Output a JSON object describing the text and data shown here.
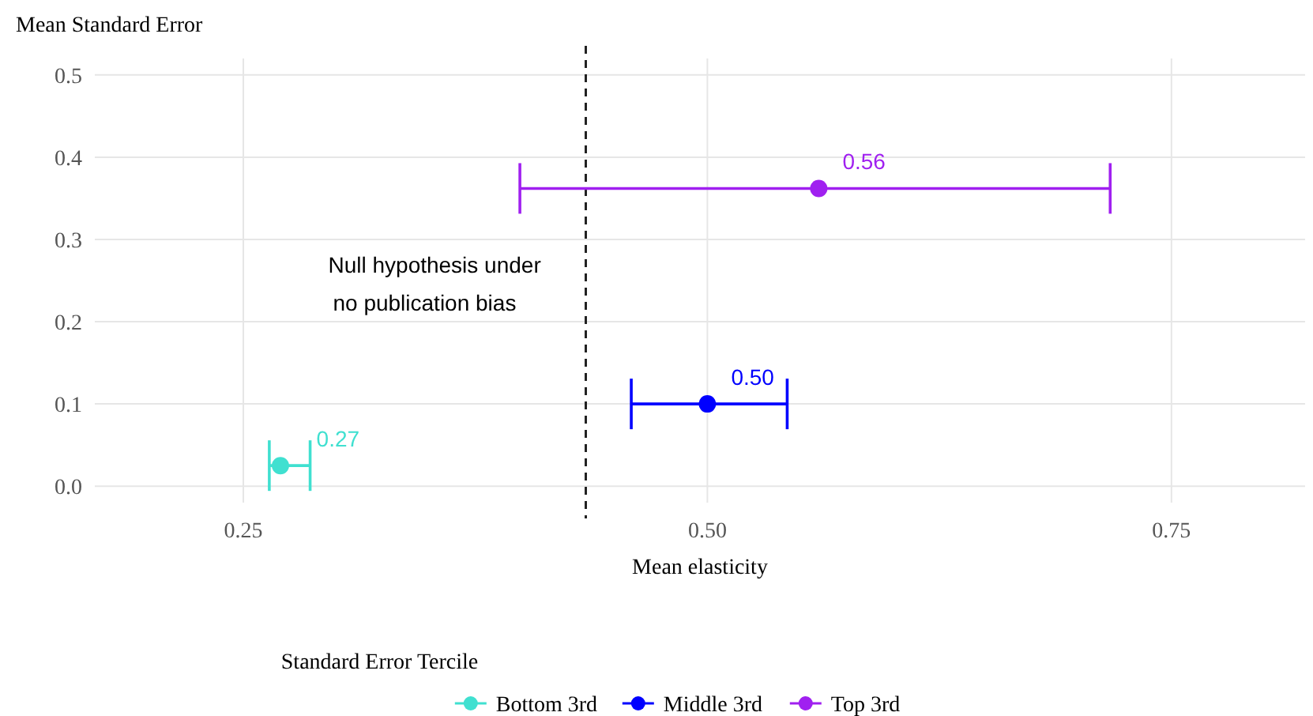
{
  "chart_data": {
    "type": "scatter",
    "ylabel": "Mean Standard Error",
    "xlabel": "Mean elasticity",
    "legend_title": "Standard Error Tercile",
    "legend": "bottom",
    "grid": true,
    "marker": "circle",
    "xlim": [
      0.17,
      0.822
    ],
    "xticks": [
      0.25,
      {
        "value": 0.5,
        "label": "0.50"
      },
      0.75
    ],
    "ylim": [
      -0.02,
      0.52
    ],
    "yticks": [
      {
        "value": 0,
        "label": "0.0"
      },
      0.1,
      0.2,
      0.3,
      0.4,
      0.5
    ],
    "series": [
      {
        "name": "Bottom 3rd",
        "color": "#40e0d0",
        "x": [
          0.27
        ],
        "values": [
          0.025
        ],
        "xerrors": [
          [
            0.264,
            0.286
          ]
        ]
      },
      {
        "name": "Middle 3rd",
        "color": "#0000ff",
        "x": [
          0.5
        ],
        "values": [
          0.1
        ],
        "xerrors": [
          [
            0.459,
            0.543
          ]
        ]
      },
      {
        "name": "Top 3rd",
        "color": "#a020f0",
        "x": [
          0.56
        ],
        "values": [
          0.362
        ],
        "xerrors": [
          [
            0.399,
            0.717
          ]
        ]
      }
    ],
    "annotations": [
      {
        "text": "0.27",
        "x": 0.27,
        "y": 0.025
      },
      {
        "text": "0.50",
        "x": 0.5,
        "y": 0.1
      },
      {
        "text": "0.56",
        "x": 0.56,
        "y": 0.362
      }
    ],
    "ref_lines": [
      {
        "axis": "x",
        "value": 0.4345,
        "label": "Null hypothesis under\nno publication bias",
        "line_style": "dashed",
        "color": "#222222"
      }
    ]
  }
}
